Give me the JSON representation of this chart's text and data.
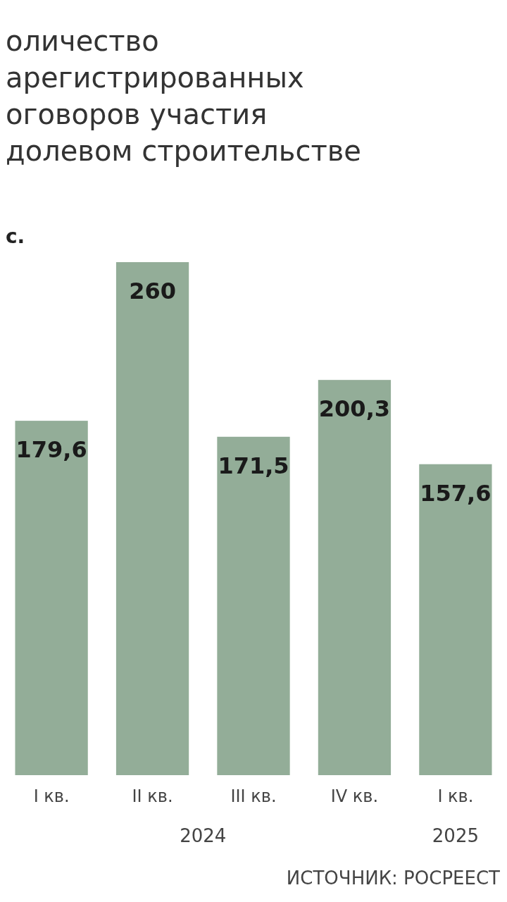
{
  "chart_data": {
    "type": "bar",
    "title": "оличество\nарегистрированных\nоговоров участия\nдолевом строительстве",
    "subtitle": "с.",
    "categories": [
      "I кв.",
      "II кв.",
      "III кв.",
      "IV кв.",
      "I кв."
    ],
    "values": [
      179.6,
      260,
      171.5,
      200.3,
      157.6
    ],
    "value_labels": [
      "179,6",
      "260",
      "171,5",
      "200,3",
      "157,6"
    ],
    "color": "#93ad98",
    "annotations": [
      "2024",
      "2025",
      "ИСТОЧНИК: РОСРЕЕСТ"
    ]
  }
}
